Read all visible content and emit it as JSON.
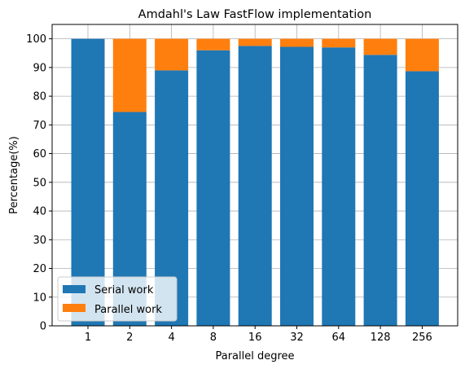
{
  "chart_data": {
    "type": "bar",
    "stacked": true,
    "title": "Amdahl's Law FastFlow implementation",
    "xlabel": "Parallel degree",
    "ylabel": "Percentage(%)",
    "categories": [
      "1",
      "2",
      "4",
      "8",
      "16",
      "32",
      "64",
      "128",
      "256"
    ],
    "series": [
      {
        "name": "Serial work",
        "color": "#1f77b4",
        "values": [
          100,
          74.5,
          89,
          96,
          97.5,
          97.2,
          97,
          94.4,
          88.7
        ]
      },
      {
        "name": "Parallel work",
        "color": "#ff7f0e",
        "values": [
          0,
          25.5,
          11,
          4,
          2.5,
          2.8,
          3,
          5.6,
          11.3
        ]
      }
    ],
    "ylim": [
      0,
      105
    ],
    "yticks": [
      0,
      10,
      20,
      30,
      40,
      50,
      60,
      70,
      80,
      90,
      100
    ],
    "grid": true,
    "legend_position": "lower-left"
  }
}
